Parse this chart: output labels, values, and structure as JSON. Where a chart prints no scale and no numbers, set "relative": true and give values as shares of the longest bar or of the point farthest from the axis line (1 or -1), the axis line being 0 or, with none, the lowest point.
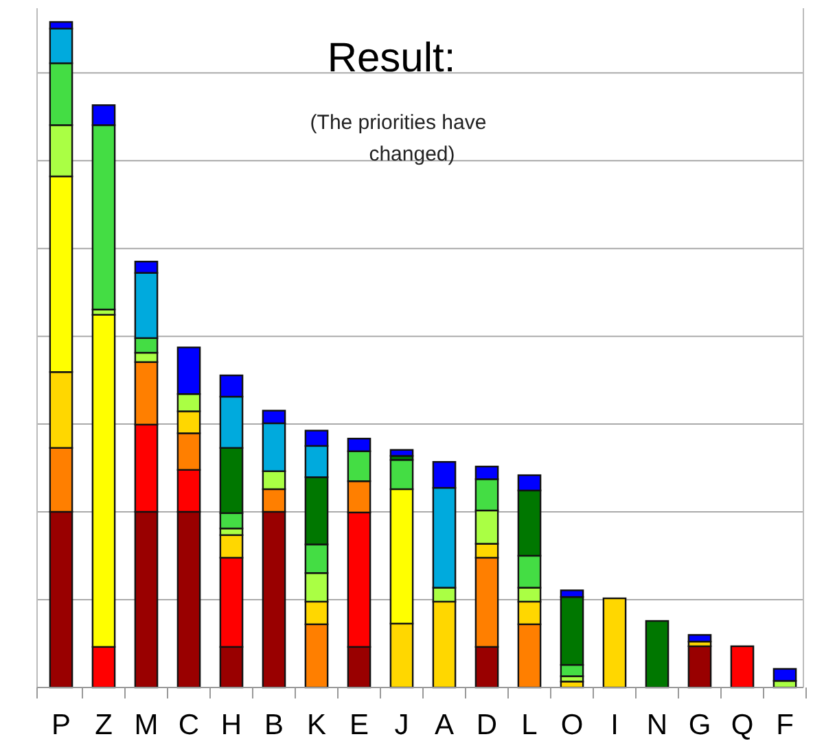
{
  "chart_data": {
    "type": "bar",
    "title": "Result:",
    "subtitle": "(The priorities have changed)",
    "relative": true,
    "stacked": true,
    "grid": "y",
    "categories": [
      "P",
      "Z",
      "M",
      "C",
      "H",
      "B",
      "K",
      "E",
      "J",
      "A",
      "D",
      "L",
      "O",
      "I",
      "N",
      "G",
      "Q",
      "F"
    ],
    "series": [
      {
        "color": "#990000",
        "values": [
          0.264,
          null,
          0.264,
          0.264,
          0.061,
          0.264,
          null,
          0.061,
          null,
          null,
          0.061,
          null,
          null,
          null,
          null,
          0.062,
          null,
          null
        ]
      },
      {
        "color": "#ff0000",
        "values": [
          null,
          0.061,
          0.131,
          0.063,
          0.134,
          null,
          null,
          0.202,
          null,
          null,
          null,
          null,
          null,
          null,
          null,
          null,
          0.062,
          null
        ]
      },
      {
        "color": "#ff7f00",
        "values": [
          0.096,
          null,
          0.094,
          0.055,
          null,
          0.034,
          0.095,
          0.047,
          null,
          null,
          0.134,
          0.095,
          null,
          null,
          null,
          null,
          null,
          null
        ]
      },
      {
        "color": "#ffd700",
        "values": [
          0.114,
          null,
          null,
          0.033,
          0.034,
          null,
          0.034,
          null,
          0.096,
          0.129,
          0.021,
          0.034,
          0.009,
          0.134,
          null,
          0.007,
          null,
          null
        ]
      },
      {
        "color": "#ffff00",
        "values": [
          0.294,
          0.499,
          null,
          null,
          null,
          null,
          null,
          null,
          0.202,
          null,
          null,
          null,
          null,
          null,
          null,
          null,
          null,
          null
        ]
      },
      {
        "color": "#aaff44",
        "values": [
          0.077,
          0.008,
          0.014,
          0.026,
          0.01,
          0.027,
          0.043,
          null,
          null,
          0.021,
          0.05,
          0.021,
          0.008,
          null,
          null,
          null,
          null,
          0.01
        ]
      },
      {
        "color": "#44dd44",
        "values": [
          0.093,
          0.277,
          0.022,
          null,
          0.023,
          null,
          0.043,
          0.045,
          0.044,
          null,
          0.047,
          0.048,
          0.017,
          null,
          null,
          null,
          null,
          null
        ]
      },
      {
        "color": "#007700",
        "values": [
          null,
          null,
          null,
          null,
          0.098,
          null,
          0.101,
          null,
          0.006,
          null,
          null,
          0.098,
          0.102,
          null,
          0.1,
          null,
          null,
          null
        ]
      },
      {
        "color": "#00aadd",
        "values": [
          0.052,
          null,
          0.098,
          null,
          0.077,
          0.072,
          0.047,
          null,
          null,
          0.15,
          null,
          null,
          null,
          null,
          null,
          null,
          null,
          null
        ]
      },
      {
        "color": "#0000ff",
        "values": [
          0.01,
          0.03,
          0.017,
          0.07,
          0.032,
          0.019,
          0.023,
          0.019,
          0.009,
          0.039,
          0.019,
          0.023,
          0.01,
          null,
          null,
          0.01,
          null,
          0.018
        ]
      }
    ]
  }
}
